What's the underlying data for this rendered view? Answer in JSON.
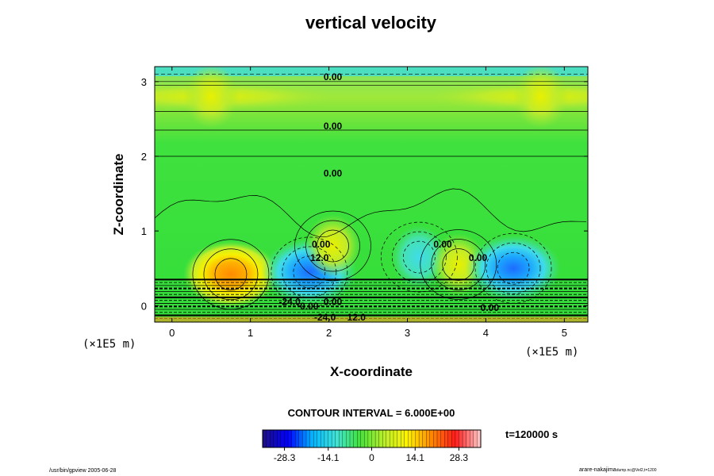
{
  "chart_data": {
    "type": "heatmap",
    "title": "vertical velocity",
    "xlabel": "X-coordinate",
    "ylabel": "Z-coordinate",
    "x_unit": "(×1E5 m)",
    "y_unit": "(×1E5 m)",
    "xlim": [
      -0.22,
      5.3
    ],
    "ylim": [
      -0.22,
      3.2
    ],
    "x_ticks": [
      "0",
      "1",
      "2",
      "3",
      "4",
      "5"
    ],
    "y_ticks": [
      "0",
      "1",
      "2",
      "3"
    ],
    "contour_labels": [
      {
        "text": "0.00",
        "x": 2.05,
        "z": 3.02
      },
      {
        "text": "0.00",
        "x": 2.05,
        "z": 2.36
      },
      {
        "text": "0.00",
        "x": 2.05,
        "z": 1.73
      },
      {
        "text": "0.00",
        "x": 1.9,
        "z": 0.78
      },
      {
        "text": "12.0",
        "x": 1.88,
        "z": 0.6
      },
      {
        "text": "0.00",
        "x": 3.45,
        "z": 0.78
      },
      {
        "text": "0.00",
        "x": 3.9,
        "z": 0.6
      },
      {
        "text": "0.00",
        "x": 1.75,
        "z": -0.05
      },
      {
        "text": "0.00",
        "x": 2.05,
        "z": 0.01
      },
      {
        "text": "0.00",
        "x": 4.05,
        "z": -0.07
      },
      {
        "text": "-24.0",
        "x": 1.5,
        "z": 0.01
      },
      {
        "text": "-24.0",
        "x": 1.95,
        "z": -0.2
      },
      {
        "text": "12.0",
        "x": 2.35,
        "z": -0.2
      }
    ],
    "features": [
      {
        "sign": "positive",
        "x": 0.75,
        "z": 0.42,
        "peak": 28
      },
      {
        "sign": "negative",
        "x": 1.75,
        "z": 0.45,
        "peak": -20
      },
      {
        "sign": "positive",
        "x": 2.05,
        "z": 0.8,
        "peak": 6
      },
      {
        "sign": "negative",
        "x": 3.15,
        "z": 0.65,
        "peak": -5
      },
      {
        "sign": "positive",
        "x": 3.65,
        "z": 0.55,
        "peak": 5
      },
      {
        "sign": "negative",
        "x": 4.35,
        "z": 0.5,
        "peak": -16
      },
      {
        "sign": "positive",
        "x": 0.5,
        "z": 2.8,
        "peak": 5
      },
      {
        "sign": "positive",
        "x": 4.7,
        "z": 2.8,
        "peak": 5
      }
    ],
    "colorbar": {
      "min": -35.4,
      "max": 35.4,
      "ticks": [
        "-28.3",
        "-14.1",
        "0",
        "14.1",
        "28.3"
      ],
      "colors": [
        "#1c0f8a",
        "#0000ff",
        "#00b4ff",
        "#3fe3d8",
        "#43e23c",
        "#b8ee2c",
        "#fff300",
        "#ff8a00",
        "#ff1a1a",
        "#ffc0c0"
      ]
    },
    "contour_interval": "CONTOUR INTERVAL = 6.000E+00",
    "time_label": "t=120000 s"
  },
  "footer": {
    "left": "/usr/bin/gpview 2005-06-28",
    "right_main": "arare-nakajima",
    "right_sub": "dump.nc@Vel2,t=1200"
  }
}
